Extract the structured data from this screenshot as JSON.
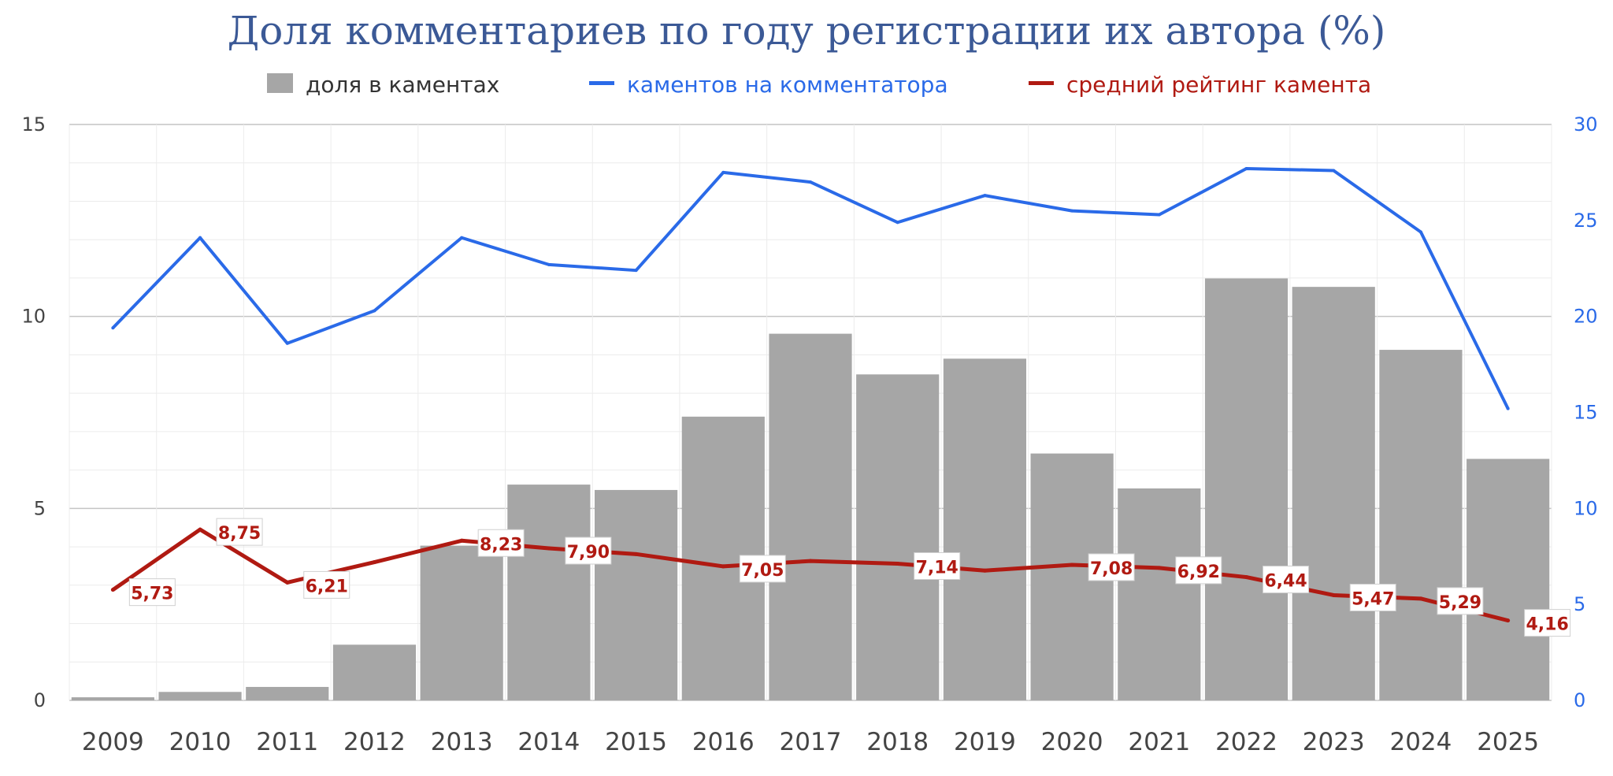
{
  "chart_data": {
    "type": "bar",
    "title": "Доля комментариев по году регистрации их автора (%)",
    "categories": [
      "2009",
      "2010",
      "2011",
      "2012",
      "2013",
      "2014",
      "2015",
      "2016",
      "2017",
      "2018",
      "2019",
      "2020",
      "2021",
      "2022",
      "2023",
      "2024",
      "2025"
    ],
    "left_axis": {
      "range": [
        0,
        15
      ],
      "ticks": [
        "0",
        "5",
        "10",
        "15"
      ]
    },
    "right_axis": {
      "range": [
        0,
        30
      ],
      "ticks": [
        "0",
        "5",
        "10",
        "15",
        "20",
        "25",
        "30"
      ]
    },
    "grid": true,
    "legend_position": "top",
    "series": [
      {
        "name": "доля в каментах",
        "type": "bar",
        "axis": "left",
        "color": "#a6a6a6",
        "values": [
          0.08,
          0.22,
          0.35,
          1.45,
          4.03,
          5.62,
          5.48,
          7.39,
          9.55,
          8.49,
          8.9,
          6.43,
          5.52,
          10.99,
          10.77,
          9.13,
          6.29
        ]
      },
      {
        "name": "каментов на комментатора",
        "type": "line",
        "axis": "right",
        "color": "#2a6ae8",
        "values": [
          19.4,
          24.1,
          18.6,
          20.3,
          24.1,
          22.7,
          22.4,
          27.5,
          27.0,
          24.9,
          26.3,
          25.5,
          25.3,
          27.7,
          27.6,
          24.4,
          15.2
        ]
      },
      {
        "name": "средний рейтинг камента",
        "type": "line",
        "axis": "left",
        "color": "#b01a12",
        "values": [
          2.88,
          4.45,
          3.07,
          3.6,
          4.16,
          3.96,
          3.81,
          3.49,
          3.63,
          3.56,
          3.38,
          3.53,
          3.45,
          3.21,
          2.74,
          2.65,
          2.08
        ],
        "labels": [
          "5,73",
          "8,75",
          "6,21",
          "",
          "8,23",
          "7,90",
          "",
          "7,05",
          "",
          "7,14",
          "",
          "7,08",
          "6,92",
          "6,44",
          "5,47",
          "5,29",
          "4,16"
        ]
      }
    ]
  }
}
